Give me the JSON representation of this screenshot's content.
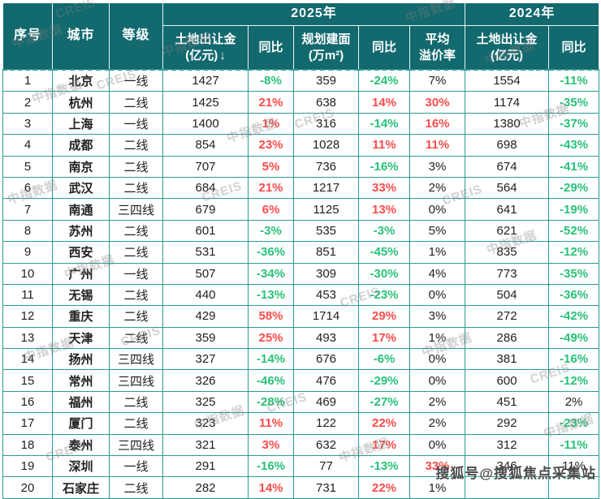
{
  "colors": {
    "header_bg": "#12696e",
    "grid": "#2b9c94",
    "up_red": "#fb4b4b",
    "down_green": "#27c279",
    "text": "#212121"
  },
  "watermarks": {
    "cn": "中指数据",
    "en": "CREIS",
    "sohu": "搜狐号@搜狐焦点采集站"
  },
  "chart_data": {
    "type": "table",
    "groups": {
      "y2025": "2025年",
      "y2024": "2024年"
    },
    "headers": {
      "index": "序号",
      "city": "城市",
      "tier": "等级",
      "fee25_line1": "土地出让金",
      "fee25_line2": "(亿元)",
      "sort_arrow": "↓",
      "yoy": "同比",
      "area_line1": "规划建面",
      "area_line2": "(万m²)",
      "premium_line1": "平均",
      "premium_line2": "溢价率",
      "fee24_line1": "土地出让金",
      "fee24_line2": "(亿元)",
      "yoy24": "同比"
    },
    "rows": [
      [
        "1",
        "北京",
        "一线",
        "1427",
        "-8%",
        "359",
        "-24%",
        "7%",
        "1554",
        "-11%"
      ],
      [
        "2",
        "杭州",
        "二线",
        "1425",
        "21%",
        "638",
        "14%",
        "30%",
        "1174",
        "-35%"
      ],
      [
        "3",
        "上海",
        "一线",
        "1400",
        "1%",
        "316",
        "-14%",
        "16%",
        "1380",
        "-37%"
      ],
      [
        "4",
        "成都",
        "二线",
        "854",
        "23%",
        "1028",
        "11%",
        "11%",
        "698",
        "-43%"
      ],
      [
        "5",
        "南京",
        "二线",
        "707",
        "5%",
        "736",
        "-16%",
        "3%",
        "674",
        "-41%"
      ],
      [
        "6",
        "武汉",
        "二线",
        "684",
        "21%",
        "1217",
        "33%",
        "2%",
        "564",
        "-29%"
      ],
      [
        "7",
        "南通",
        "三四线",
        "679",
        "6%",
        "1125",
        "13%",
        "0%",
        "641",
        "-19%"
      ],
      [
        "8",
        "苏州",
        "二线",
        "601",
        "-3%",
        "535",
        "-3%",
        "5%",
        "621",
        "-52%"
      ],
      [
        "9",
        "西安",
        "二线",
        "531",
        "-36%",
        "851",
        "-45%",
        "1%",
        "835",
        "-12%"
      ],
      [
        "10",
        "广州",
        "一线",
        "507",
        "-34%",
        "309",
        "-30%",
        "4%",
        "773",
        "-35%"
      ],
      [
        "11",
        "无锡",
        "二线",
        "440",
        "-13%",
        "453",
        "-23%",
        "0%",
        "504",
        "-36%"
      ],
      [
        "12",
        "重庆",
        "二线",
        "429",
        "58%",
        "1714",
        "29%",
        "3%",
        "272",
        "-42%"
      ],
      [
        "13",
        "天津",
        "二线",
        "359",
        "25%",
        "493",
        "17%",
        "1%",
        "286",
        "-49%"
      ],
      [
        "14",
        "扬州",
        "三四线",
        "327",
        "-14%",
        "676",
        "-6%",
        "0%",
        "381",
        "-16%"
      ],
      [
        "15",
        "常州",
        "三四线",
        "326",
        "-46%",
        "476",
        "-29%",
        "0%",
        "600",
        "-12%"
      ],
      [
        "16",
        "福州",
        "二线",
        "325",
        "-28%",
        "469",
        "-27%",
        "2%",
        "451",
        "2%"
      ],
      [
        "17",
        "厦门",
        "二线",
        "323",
        "11%",
        "122",
        "22%",
        "2%",
        "292",
        "-23%"
      ],
      [
        "18",
        "泰州",
        "三四线",
        "321",
        "3%",
        "632",
        "17%",
        "0%",
        "312",
        "-11%"
      ],
      [
        "19",
        "深圳",
        "一线",
        "291",
        "-16%",
        "77",
        "-13%",
        "33%",
        "346",
        "11%"
      ],
      [
        "20",
        "石家庄",
        "二线",
        "282",
        "14%",
        "731",
        "22%",
        "1%",
        "",
        ""
      ]
    ]
  }
}
